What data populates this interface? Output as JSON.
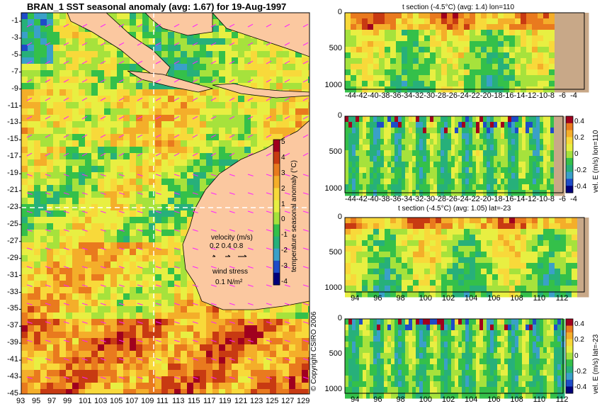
{
  "map": {
    "title": "BRAN_1  SST seasonal anomaly (avg: 1.67) for 19-Aug-1997",
    "y_ticks": [
      "-1",
      "-3",
      "-5",
      "-7",
      "-9",
      "-11",
      "-13",
      "-15",
      "-17",
      "-19",
      "-21",
      "-23",
      "-25",
      "-27",
      "-29",
      "-31",
      "-33",
      "-35",
      "-37",
      "-39",
      "-41",
      "-43",
      "-45"
    ],
    "x_ticks": [
      "93",
      "95",
      "97",
      "99",
      "101",
      "103",
      "105",
      "107",
      "109",
      "111",
      "113",
      "115",
      "117",
      "119",
      "121",
      "123",
      "125",
      "127",
      "129"
    ],
    "colorbar": {
      "label": "temperature seasonal anomaly (°C)",
      "ticks": [
        "5",
        "4",
        "3",
        "2",
        "1",
        "0",
        "-1",
        "-2",
        "-3",
        "-4"
      ],
      "colors": [
        "#a0001e",
        "#c83a12",
        "#e97a1e",
        "#f4ae2a",
        "#f8d93a",
        "#e8ef42",
        "#a6e23c",
        "#34c04a",
        "#27b07a",
        "#3aa0c8",
        "#1e4cc8",
        "#00007a"
      ]
    },
    "velocity_legend": {
      "title": "velocity (m/s)",
      "values": "0.2 0.4 0.8"
    },
    "wind_legend": {
      "title": "wind stress",
      "value": "0.1 N/m²"
    },
    "copyright": "© Copyright CSIRO 2006",
    "land_color": "#fbc8a0"
  },
  "chart_data": [
    {
      "type": "heatmap",
      "title": "BRAN_1  SST seasonal anomaly (avg: 1.67) for 19-Aug-1997",
      "xlabel": "",
      "ylabel": "",
      "xlim": [
        93,
        130
      ],
      "ylim": [
        -45,
        0
      ],
      "x_ticks": [
        93,
        95,
        97,
        99,
        101,
        103,
        105,
        107,
        109,
        111,
        113,
        115,
        117,
        119,
        121,
        123,
        125,
        127,
        129
      ],
      "y_ticks": [
        -1,
        -3,
        -5,
        -7,
        -9,
        -11,
        -13,
        -15,
        -17,
        -19,
        -21,
        -23,
        -25,
        -27,
        -29,
        -31,
        -33,
        -35,
        -37,
        -39,
        -41,
        -43,
        -45
      ],
      "colorbar_range": [
        -4,
        5
      ],
      "colorbar_label": "temperature seasonal anomaly (°C)",
      "section_lines": {
        "lon": 110,
        "lat": -23
      }
    },
    {
      "type": "heatmap",
      "title": "t section (-4.5°C) (avg: 1.4) lon=110",
      "x_tick_labels": [
        "-44",
        "-42",
        "-40",
        "-38",
        "-36",
        "-34",
        "-32",
        "-30",
        "-28",
        "-26",
        "-24",
        "-22",
        "-20",
        "-18",
        "-16",
        "-14",
        "-12",
        "-10",
        "-8",
        "-6",
        "-4"
      ],
      "y_tick_labels": [
        "0",
        "500",
        "1000"
      ],
      "xlim": [
        -45,
        -2.5
      ],
      "ylim": [
        1050,
        0
      ]
    },
    {
      "type": "heatmap",
      "title": "",
      "x_tick_labels": [
        "-44",
        "-42",
        "-40",
        "-38",
        "-36",
        "-34",
        "-32",
        "-30",
        "-28",
        "-26",
        "-24",
        "-22",
        "-20",
        "-18",
        "-16",
        "-14",
        "-12",
        "-10",
        "-8",
        "-6",
        "-4"
      ],
      "y_tick_labels": [
        "0",
        "500",
        "1000"
      ],
      "xlim": [
        -45,
        -2.5
      ],
      "ylim": [
        1050,
        0
      ],
      "colorbar_label": "vel. E (m/s) lon=110",
      "colorbar_ticks": [
        "0.4",
        "0.2",
        "0",
        "-0.2",
        "-0.4"
      ]
    },
    {
      "type": "heatmap",
      "title": "t section (-4.5°C) (avg: 1.05) lat=-23",
      "x_tick_labels": [
        "94",
        "96",
        "98",
        "100",
        "102",
        "104",
        "106",
        "108",
        "110",
        "112"
      ],
      "y_tick_labels": [
        "0",
        "500",
        "1000"
      ],
      "xlim": [
        93,
        114
      ],
      "ylim": [
        1050,
        0
      ]
    },
    {
      "type": "heatmap",
      "title": "",
      "x_tick_labels": [
        "94",
        "96",
        "98",
        "100",
        "102",
        "104",
        "106",
        "108",
        "110",
        "112"
      ],
      "y_tick_labels": [
        "0",
        "500",
        "1000"
      ],
      "xlim": [
        93,
        114
      ],
      "ylim": [
        1050,
        0
      ],
      "colorbar_label": "vel. E (m/s) lat=-23",
      "colorbar_ticks": [
        "0.4",
        "0.2",
        "0",
        "-0.2",
        "-0.4"
      ]
    }
  ]
}
